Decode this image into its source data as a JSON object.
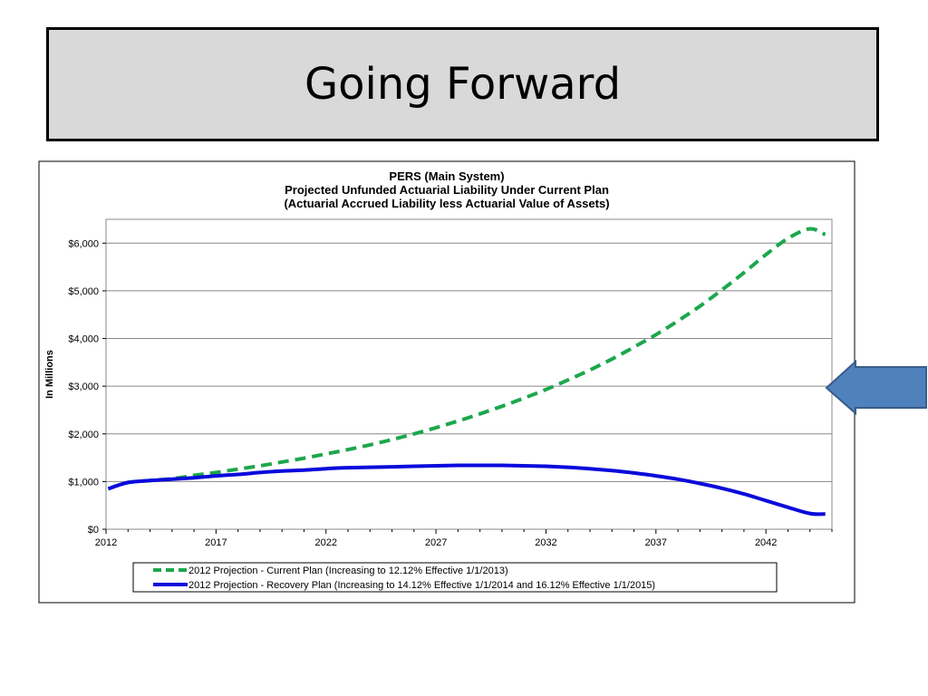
{
  "slide": {
    "title": "Going Forward"
  },
  "chart_data": {
    "type": "line",
    "title": "PERS (Main System)",
    "subtitle_lines": [
      "Projected Unfunded Actuarial Liability Under Current Plan",
      "(Actuarial Accrued Liability less Actuarial Value of Assets)"
    ],
    "ylabel": "In Millions",
    "xlabel": "",
    "xlim": [
      2012,
      2045
    ],
    "ylim": [
      0,
      6500
    ],
    "x_ticks": [
      "2012",
      "2017",
      "2022",
      "2027",
      "2032",
      "2037",
      "2042"
    ],
    "y_ticks": [
      {
        "value": 0,
        "label": "$0"
      },
      {
        "value": 1000,
        "label": "$1,000"
      },
      {
        "value": 2000,
        "label": "$2,000"
      },
      {
        "value": 3000,
        "label": "$3,000"
      },
      {
        "value": 4000,
        "label": "$4,000"
      },
      {
        "value": 5000,
        "label": "$5,000"
      },
      {
        "value": 6000,
        "label": "$6,000"
      }
    ],
    "grid": "horizontal",
    "legend_position": "bottom",
    "series": [
      {
        "name": "2012 Projection - Current Plan (Increasing to 12.12% Effective 1/1/2013)",
        "color": "#1ca74c",
        "dash": "dashed",
        "x": [
          2012.1,
          2013,
          2014,
          2015,
          2016,
          2017,
          2018,
          2019,
          2020,
          2021,
          2022,
          2023,
          2024,
          2025,
          2026,
          2027,
          2028,
          2029,
          2030,
          2031,
          2032,
          2033,
          2034,
          2035,
          2036,
          2037,
          2038,
          2039,
          2040,
          2041,
          2042,
          2043,
          2044,
          2044.7
        ],
        "values": [
          850,
          980,
          1020,
          1060,
          1130,
          1190,
          1260,
          1330,
          1410,
          1490,
          1580,
          1670,
          1770,
          1880,
          2000,
          2130,
          2270,
          2420,
          2580,
          2750,
          2930,
          3130,
          3340,
          3570,
          3820,
          4080,
          4370,
          4680,
          5020,
          5380,
          5760,
          6100,
          6300,
          6180
        ]
      },
      {
        "name": "2012 Projection - Recovery Plan (Increasing to 14.12% Effective 1/1/2014 and 16.12% Effective 1/1/2015)",
        "color": "#0a0adc",
        "dash": "solid",
        "x": [
          2012.1,
          2013,
          2014,
          2015,
          2016,
          2017,
          2018,
          2019,
          2020,
          2021,
          2022,
          2023,
          2024,
          2025,
          2026,
          2027,
          2028,
          2029,
          2030,
          2031,
          2032,
          2033,
          2034,
          2035,
          2036,
          2037,
          2038,
          2039,
          2040,
          2041,
          2042,
          2043,
          2044,
          2044.7
        ],
        "values": [
          850,
          980,
          1020,
          1050,
          1080,
          1120,
          1150,
          1190,
          1220,
          1240,
          1270,
          1290,
          1300,
          1310,
          1320,
          1330,
          1340,
          1340,
          1340,
          1330,
          1320,
          1300,
          1270,
          1230,
          1180,
          1120,
          1050,
          960,
          860,
          740,
          600,
          460,
          330,
          320
        ]
      }
    ]
  }
}
